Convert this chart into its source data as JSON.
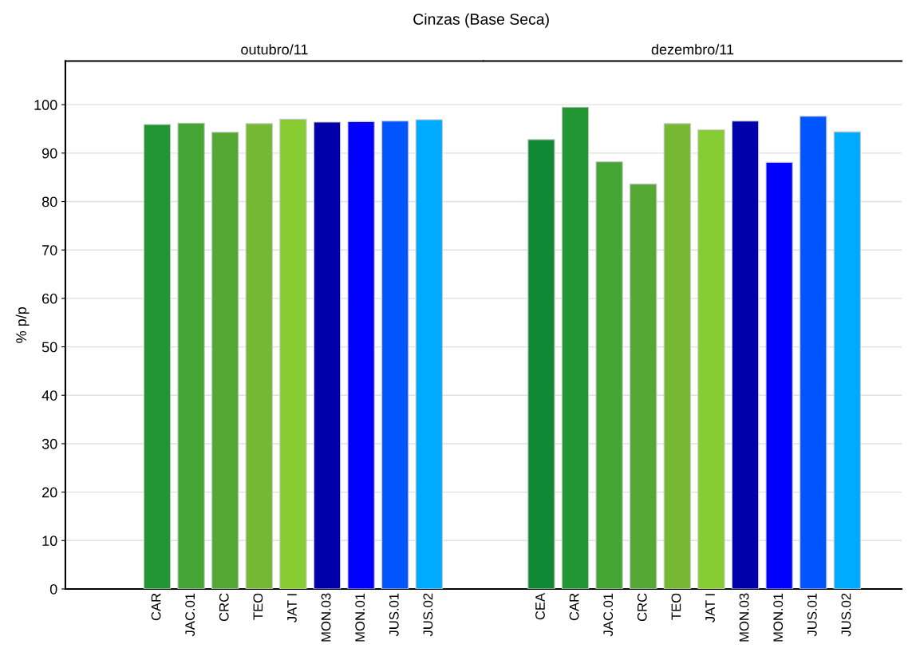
{
  "chart_data": [
    {
      "type": "bar",
      "title": "outubro/11",
      "ylabel": "% p/p",
      "categories": [
        null,
        "CAR",
        "JAC.01",
        "CRC",
        "TEO",
        "JAT I",
        "MON.03",
        "MON.01",
        "JUS.01",
        "JUS.02"
      ],
      "values": [
        null,
        95.9,
        96.2,
        94.3,
        96.1,
        97.0,
        96.4,
        96.5,
        96.6,
        96.9
      ],
      "colors": [
        "#118833",
        "#229633",
        "#44a535",
        "#55a833",
        "#77b833",
        "#88cc33",
        "#0000aa",
        "#0000ff",
        "#0055ff",
        "#00aaff"
      ],
      "ylim": [
        0,
        109
      ],
      "yticks": [
        0,
        10,
        20,
        30,
        40,
        50,
        60,
        70,
        80,
        90,
        100
      ],
      "grid": "y",
      "annotations": [
        "Cinzas (Base Seca)"
      ]
    },
    {
      "type": "bar",
      "title": "dezembro/11",
      "categories": [
        "CEA",
        "CAR",
        "JAC.01",
        "CRC",
        "TEO",
        "JAT I",
        "MON.03",
        "MON.01",
        "JUS.01",
        "JUS.02"
      ],
      "values": [
        92.8,
        99.5,
        88.2,
        83.6,
        96.1,
        94.8,
        96.6,
        88.1,
        97.6,
        94.4
      ],
      "colors": [
        "#118833",
        "#229633",
        "#44a535",
        "#55a833",
        "#77b833",
        "#88cc33",
        "#0000aa",
        "#0000ff",
        "#0055ff",
        "#00aaff"
      ],
      "ylim": [
        0,
        109
      ],
      "yticks": [
        0,
        10,
        20,
        30,
        40,
        50,
        60,
        70,
        80,
        90,
        100
      ],
      "grid": "y",
      "tick_labels": "x"
    }
  ]
}
